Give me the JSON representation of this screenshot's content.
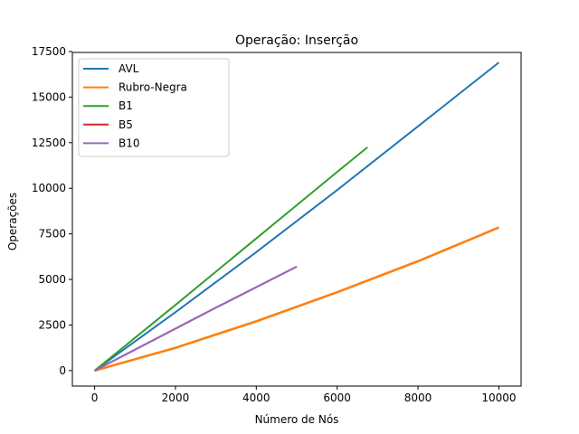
{
  "chart_data": {
    "type": "line",
    "title": "Operação: Inserção",
    "xlabel": "Número de Nós",
    "ylabel": "Operações",
    "xlim": [
      -550,
      10550
    ],
    "ylim": [
      -850,
      17450
    ],
    "xticks": [
      0,
      2000,
      4000,
      6000,
      8000,
      10000
    ],
    "xtick_labels": [
      "0",
      "2000",
      "4000",
      "6000",
      "8000",
      "10000"
    ],
    "yticks": [
      0,
      2500,
      5000,
      7500,
      10000,
      12500,
      15000,
      17500
    ],
    "ytick_labels": [
      "0",
      "2500",
      "5000",
      "7500",
      "10000",
      "12500",
      "15000",
      "17500"
    ],
    "grid": false,
    "legend_position": "top-left",
    "series": [
      {
        "name": "AVL",
        "color": "#1f77b4",
        "x": [
          0,
          2000,
          4000,
          6000,
          8000,
          10000
        ],
        "y": [
          0,
          3200,
          6500,
          9900,
          13400,
          16900
        ]
      },
      {
        "name": "Rubro-Negra",
        "color": "#ff7f0e",
        "x": [
          0,
          2000,
          4000,
          6000,
          8000,
          10000
        ],
        "y": [
          0,
          1250,
          2700,
          4300,
          6000,
          7850
        ]
      },
      {
        "name": "B1",
        "color": "#2ca02c",
        "x": [
          0,
          2000,
          4000,
          6000,
          6750
        ],
        "y": [
          0,
          3600,
          7250,
          10900,
          12250
        ]
      },
      {
        "name": "B5",
        "color": "#d62728",
        "x": [
          0,
          3000,
          5000
        ],
        "y": [
          0,
          3450,
          5700
        ]
      },
      {
        "name": "B10",
        "color": "#9467bd",
        "x": [
          0,
          3000,
          5000
        ],
        "y": [
          0,
          3450,
          5700
        ]
      }
    ]
  }
}
